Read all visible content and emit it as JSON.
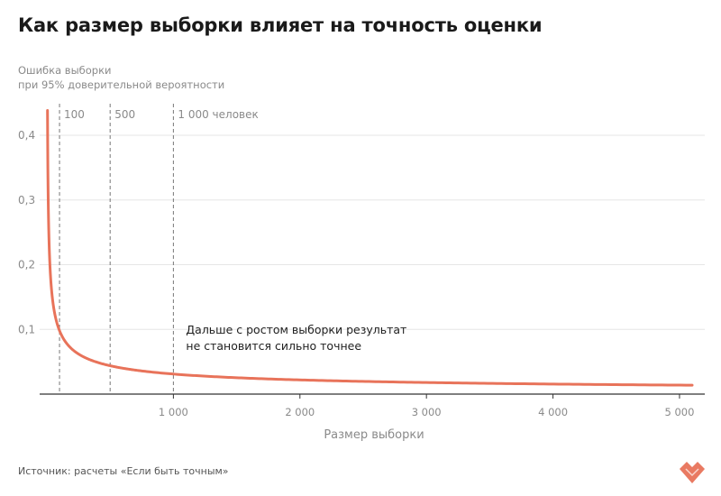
{
  "title": "Как размер выборки влияет на точность оценки",
  "source": "Источник: расчеты «Если быть точным»",
  "colors": {
    "line": "#e8735a",
    "grid": "#e6e6e6",
    "axis": "#333333",
    "ref": "#777777",
    "logo": "#e8735a"
  },
  "chart_data": {
    "type": "line",
    "title": "Как размер выборки влияет на точность оценки",
    "ylabel_lines": [
      "Ошибка выборки",
      "при 95% доверительной вероятности"
    ],
    "xlabel": "Размер выборки",
    "xlim": [
      0,
      5100
    ],
    "ylim": [
      0,
      0.45
    ],
    "grid": "horizontal",
    "legend": "none",
    "x_ticks": [
      1000,
      2000,
      3000,
      4000,
      5000
    ],
    "x_tick_labels": [
      "1 000",
      "2 000",
      "3 000",
      "4 000",
      "5 000"
    ],
    "y_ticks": [
      0.1,
      0.2,
      0.3,
      0.4
    ],
    "y_tick_labels": [
      "0,1",
      "0,2",
      "0,3",
      "0,4"
    ],
    "series": [
      {
        "formula": "0.98 / sqrt(n)",
        "x": [
          5,
          10,
          20,
          30,
          50,
          75,
          100,
          150,
          200,
          300,
          400,
          500,
          700,
          1000,
          1500,
          2000,
          2500,
          3000,
          3500,
          4000,
          4500,
          5000,
          5100
        ],
        "y": [
          0.438,
          0.31,
          0.219,
          0.179,
          0.139,
          0.113,
          0.098,
          0.08,
          0.069,
          0.057,
          0.049,
          0.044,
          0.037,
          0.031,
          0.025,
          0.022,
          0.02,
          0.018,
          0.017,
          0.015,
          0.015,
          0.014,
          0.014
        ]
      }
    ],
    "reference_lines": [
      {
        "x": 100,
        "label": "100"
      },
      {
        "x": 500,
        "label": "500"
      },
      {
        "x": 1000,
        "label": "1 000 человек"
      }
    ],
    "annotation": {
      "x": 1000,
      "y": 0.1,
      "lines": [
        "Дальше с ростом выборки результат",
        "не становится сильно точнее"
      ]
    }
  }
}
